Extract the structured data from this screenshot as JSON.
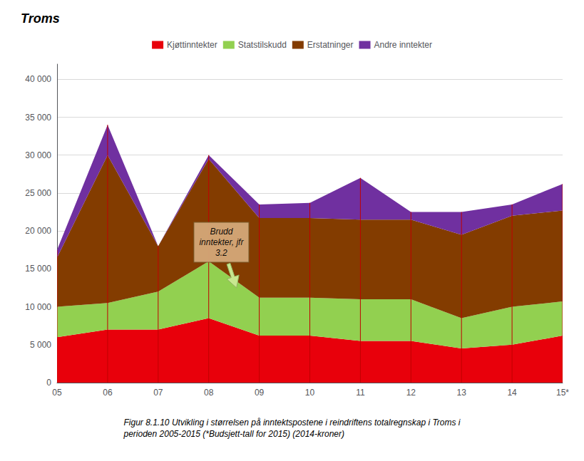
{
  "chart_data": {
    "type": "area",
    "stacked": true,
    "title": "Troms",
    "caption": "Figur 8.1.10 Utvikling i størrelsen på inntektspostene i reindriftens totalregnskap i Troms i\nperioden 2005-2015 (*Budsjett-tall for 2015) (2014-kroner)",
    "categories": [
      "05",
      "06",
      "07",
      "08",
      "09",
      "10",
      "11",
      "12",
      "13",
      "14",
      "15*"
    ],
    "series": [
      {
        "name": "Kjøttinntekter",
        "color": "#e8000b",
        "values": [
          6000,
          7000,
          7000,
          8500,
          6200,
          6200,
          5500,
          5500,
          4500,
          5000,
          6200
        ]
      },
      {
        "name": "Statstilskudd",
        "color": "#92d050",
        "values": [
          4000,
          3500,
          5000,
          7500,
          5000,
          5000,
          5500,
          5500,
          4000,
          5000,
          4500
        ]
      },
      {
        "name": "Erstatninger",
        "color": "#833c00",
        "values": [
          6500,
          19500,
          6000,
          13500,
          10500,
          10500,
          10500,
          10500,
          11000,
          12000,
          12000
        ]
      },
      {
        "name": "Andre inntekter",
        "color": "#7030a0",
        "values": [
          1000,
          4000,
          0,
          500,
          1800,
          2000,
          5500,
          1000,
          3000,
          1500,
          3500
        ]
      }
    ],
    "vline_color": "#c00000",
    "annotations": [
      {
        "text": "Brudd\ninntekter, jfr\n3.2",
        "color": "#d4a878"
      }
    ],
    "ylim": [
      0,
      42000
    ],
    "yticks": [
      0,
      {
        "value": 5000,
        "label": "5 000"
      },
      {
        "value": 10000,
        "label": "10 000"
      },
      {
        "value": 15000,
        "label": "15 000"
      },
      {
        "value": 20000,
        "label": "20 000"
      },
      {
        "value": 25000,
        "label": "25 000"
      },
      {
        "value": 30000,
        "label": "30 000"
      },
      {
        "value": 35000,
        "label": "35 000"
      },
      {
        "value": 40000,
        "label": "40 000"
      }
    ],
    "grid": true,
    "legend": "top"
  }
}
